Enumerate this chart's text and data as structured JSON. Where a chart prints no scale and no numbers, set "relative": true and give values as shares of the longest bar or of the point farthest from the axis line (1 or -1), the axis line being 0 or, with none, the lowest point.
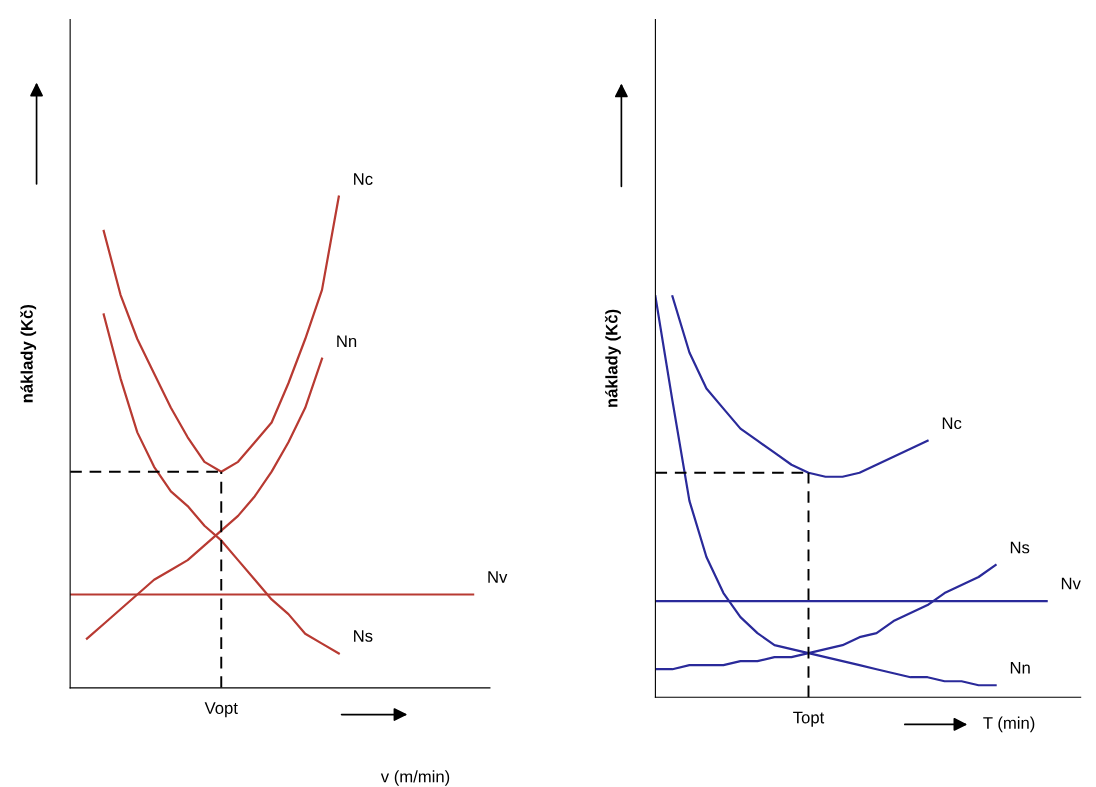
{
  "chart_data": [
    {
      "type": "line",
      "relative": true,
      "xlabel": "v (m/min)",
      "ylabel": "náklady (Kč)",
      "legend": false,
      "marker": "none",
      "categories": [
        null,
        null,
        null,
        null,
        null,
        null,
        null,
        null,
        null,
        null,
        null,
        null,
        null,
        null,
        null,
        null,
        null,
        null,
        null,
        null,
        null,
        null,
        null,
        null,
        null,
        null
      ],
      "series": [
        {
          "name": "Nc",
          "color": "#b83a32",
          "values": [
            null,
            null,
            0.93,
            0.8,
            0.71,
            0.64,
            0.57,
            0.51,
            0.46,
            0.44,
            0.46,
            0.5,
            0.54,
            0.62,
            0.71,
            0.81,
            1.0,
            null,
            null,
            null,
            null,
            null,
            null,
            null,
            null,
            null
          ]
        },
        {
          "name": "Nn",
          "color": "#b83a32",
          "values": [
            null,
            0.1,
            0.13,
            0.16,
            0.19,
            0.22,
            0.24,
            0.26,
            0.29,
            0.32,
            0.35,
            0.39,
            0.44,
            0.5,
            0.57,
            0.67,
            null,
            null,
            null,
            null,
            null,
            null,
            null,
            null,
            null,
            null
          ]
        },
        {
          "name": "Nv",
          "color": "#b83a32",
          "values": [
            0.19,
            0.19,
            0.19,
            0.19,
            0.19,
            0.19,
            0.19,
            0.19,
            0.19,
            0.19,
            0.19,
            0.19,
            0.19,
            0.19,
            0.19,
            0.19,
            0.19,
            0.19,
            0.19,
            0.19,
            0.19,
            0.19,
            0.19,
            0.19,
            0.19,
            null
          ]
        },
        {
          "name": "Ns",
          "color": "#b83a32",
          "values": [
            null,
            null,
            0.76,
            0.63,
            0.52,
            0.45,
            0.4,
            0.37,
            0.33,
            0.3,
            0.26,
            0.22,
            0.18,
            0.15,
            0.11,
            0.09,
            0.07,
            null,
            null,
            null,
            null,
            null,
            null,
            null,
            null,
            null
          ]
        }
      ],
      "ref_lines": [
        {
          "axis": "y",
          "value": 0.44,
          "color": "#000000",
          "line_style": "dashed"
        }
      ],
      "annotations": [
        "Vopt"
      ]
    },
    {
      "type": "line",
      "relative": true,
      "xlabel": "T (min)",
      "ylabel": "náklady (Kč)",
      "legend": false,
      "marker": "none",
      "categories": [
        null,
        null,
        null,
        null,
        null,
        null,
        null,
        null,
        null,
        null,
        null,
        null,
        null,
        null,
        null,
        null,
        null,
        null,
        null,
        null,
        null,
        null,
        null,
        null,
        null,
        null
      ],
      "series": [
        {
          "name": "Nc",
          "color": "#2a2a9a",
          "values": [
            null,
            1.0,
            0.86,
            0.77,
            0.72,
            0.67,
            0.64,
            0.61,
            0.58,
            0.56,
            0.55,
            0.55,
            0.56,
            0.58,
            0.6,
            0.62,
            0.64,
            null,
            null,
            null,
            null,
            null,
            null,
            null,
            null,
            null
          ]
        },
        {
          "name": "Ns",
          "color": "#2a2a9a",
          "values": [
            0.07,
            0.07,
            0.08,
            0.08,
            0.08,
            0.09,
            0.09,
            0.1,
            0.1,
            0.11,
            0.12,
            0.13,
            0.15,
            0.16,
            0.19,
            0.21,
            0.23,
            0.26,
            0.28,
            0.3,
            0.33,
            null,
            null,
            null,
            null,
            null
          ]
        },
        {
          "name": "Nv",
          "color": "#2a2a9a",
          "values": [
            0.24,
            0.24,
            0.24,
            0.24,
            0.24,
            0.24,
            0.24,
            0.24,
            0.24,
            0.24,
            0.24,
            0.24,
            0.24,
            0.24,
            0.24,
            0.24,
            0.24,
            0.24,
            0.24,
            0.24,
            0.24,
            0.24,
            0.24,
            0.24,
            null,
            null
          ]
        },
        {
          "name": "Nn",
          "color": "#2a2a9a",
          "values": [
            1.0,
            0.74,
            0.49,
            0.35,
            0.26,
            0.2,
            0.16,
            0.13,
            0.12,
            0.11,
            0.1,
            0.09,
            0.08,
            0.07,
            0.06,
            0.05,
            0.05,
            0.04,
            0.04,
            0.03,
            0.03,
            null,
            null,
            null,
            null,
            null
          ]
        }
      ],
      "ref_lines": [
        {
          "axis": "y",
          "value": 0.56,
          "color": "#000000",
          "line_style": "dashed"
        }
      ],
      "annotations": [
        "Topt"
      ]
    }
  ]
}
